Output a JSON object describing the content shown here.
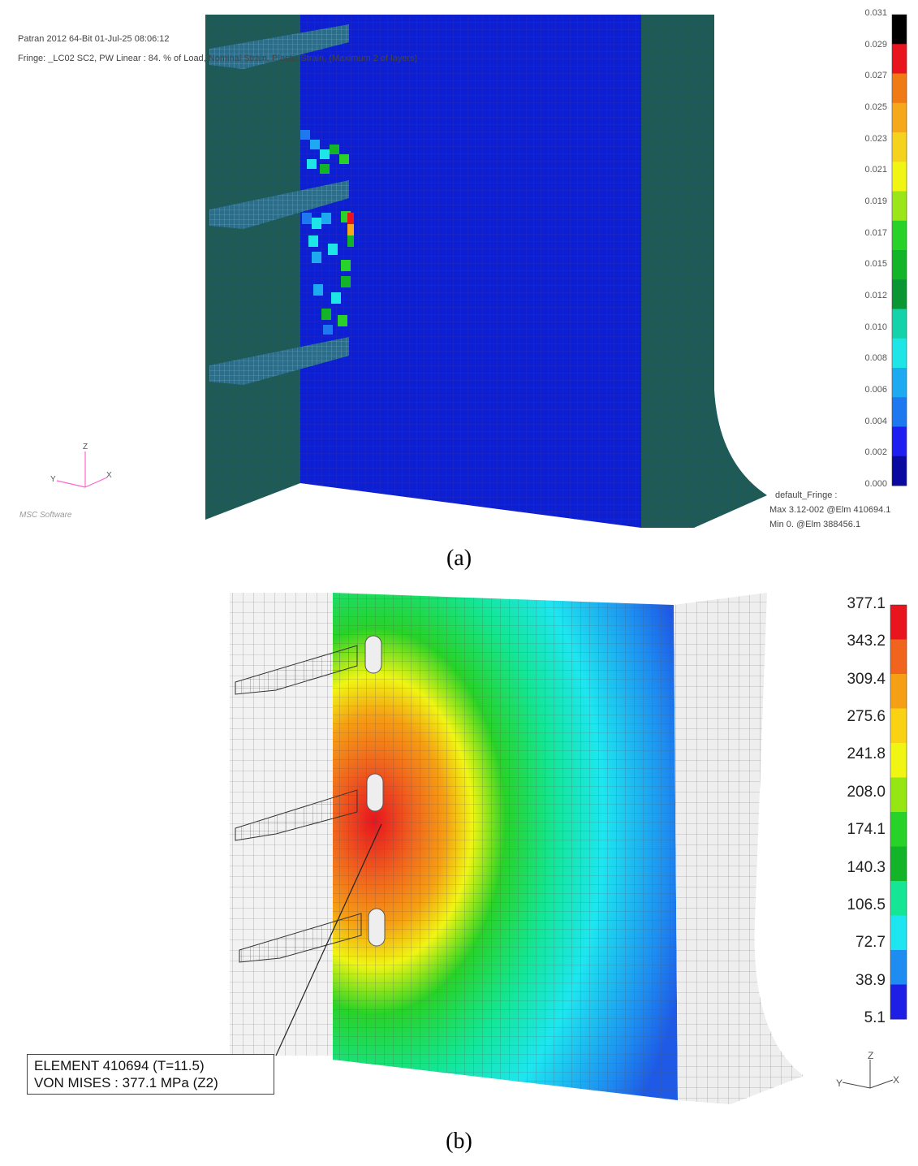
{
  "panel_a": {
    "header_line1": "Patran 2012 64-Bit 01-Jul-25 08:06:12",
    "header_line2": "Fringe: _LC02 SC2, PW Linear : 84. % of Load, Nominal Strain, Plastic Strain, (Maximum 2 of layers)",
    "legend_ticks": [
      "0.031",
      "0.029",
      "0.027",
      "0.025",
      "0.023",
      "0.021",
      "0.019",
      "0.017",
      "0.015",
      "0.012",
      "0.010",
      "0.008",
      "0.006",
      "0.004",
      "0.002",
      "0.000"
    ],
    "legend_colors": [
      "#000000",
      "#e8141e",
      "#f07a14",
      "#f5a819",
      "#f5d21e",
      "#f0f514",
      "#9be619",
      "#28d228",
      "#14b428",
      "#0a9632",
      "#14d2aa",
      "#1ee6e6",
      "#1eaaf0",
      "#1e78f0",
      "#1e1ef0",
      "#0a0aa0"
    ],
    "fringe_title": "default_Fringe :",
    "fringe_max": "Max 3.12-002 @Elm 410694.1",
    "fringe_min": "Min  0. @Elm 388456.1",
    "axis": {
      "z": "Z",
      "y": "Y",
      "x": "X"
    },
    "logo_text": "MSC Software",
    "caption": "(a)"
  },
  "panel_b": {
    "legend_ticks": [
      "377.1",
      "343.2",
      "309.4",
      "275.6",
      "241.8",
      "208.0",
      "174.1",
      "140.3",
      "106.5",
      "72.7",
      "38.9",
      "5.1"
    ],
    "legend_colors": [
      "#e8141e",
      "#f0641e",
      "#f5a014",
      "#fad214",
      "#f0f514",
      "#96e614",
      "#28d228",
      "#14b428",
      "#14e696",
      "#1ee6f0",
      "#1e8cf0",
      "#1e1ee6"
    ],
    "element_line1": "ELEMENT 410694 (T=11.5)",
    "element_line2": "VON MISES : 377.1 MPa (Z2)",
    "axis": {
      "z": "Z",
      "y": "Y",
      "x": "X"
    },
    "caption": "(b)"
  }
}
